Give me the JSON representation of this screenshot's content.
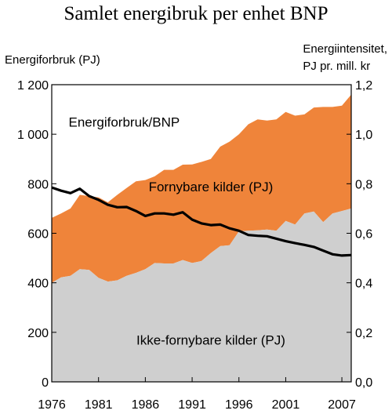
{
  "chart_data": {
    "type": "area",
    "title": "Samlet energibruk per enhet BNP",
    "ylabel_left": "Energiforbruk (PJ)",
    "ylabel_right": [
      "Energiintensitet,",
      "PJ pr. mill. kr"
    ],
    "x": [
      1976,
      1977,
      1978,
      1979,
      1980,
      1981,
      1982,
      1983,
      1984,
      1985,
      1986,
      1987,
      1988,
      1989,
      1990,
      1991,
      1992,
      1993,
      1994,
      1995,
      1996,
      1997,
      1998,
      1999,
      2000,
      2001,
      2002,
      2003,
      2004,
      2005,
      2006,
      2007,
      2008
    ],
    "xticks": [
      "1976",
      "1981",
      "1986",
      "1991",
      "1996",
      "2001",
      "2007"
    ],
    "xtick_values": [
      1976,
      1981,
      1986,
      1991,
      1996,
      2001,
      2007
    ],
    "xlim": [
      1976,
      2008
    ],
    "ylim_left": [
      0,
      1200
    ],
    "yticks_left": [
      "0",
      "200",
      "400",
      "600",
      "800",
      "1 000",
      "1 200"
    ],
    "ylim_right": [
      0,
      1.2
    ],
    "yticks_right": [
      "0,0",
      "0,2",
      "0,4",
      "0,6",
      "0,8",
      "1,0",
      "1,2"
    ],
    "grid": false,
    "series": [
      {
        "name": "Ikke-fornybare kilder (PJ)",
        "kind": "stacked-area",
        "axis": "left",
        "color": "#cfcfcf",
        "values": [
          400,
          422,
          428,
          455,
          452,
          420,
          405,
          410,
          428,
          440,
          455,
          480,
          478,
          478,
          492,
          480,
          488,
          520,
          548,
          552,
          608,
          610,
          612,
          615,
          610,
          650,
          635,
          680,
          688,
          645,
          680,
          690,
          700
        ]
      },
      {
        "name": "Fornybare kilder (PJ)",
        "kind": "stacked-area",
        "axis": "left",
        "color": "#ef843a",
        "values": [
          262,
          258,
          272,
          300,
          298,
          325,
          320,
          345,
          355,
          370,
          360,
          350,
          378,
          378,
          385,
          398,
          400,
          380,
          402,
          418,
          392,
          430,
          448,
          440,
          450,
          440,
          440,
          400,
          420,
          465,
          430,
          425,
          460
        ]
      },
      {
        "name": "Energiforbruk/BNP",
        "kind": "line",
        "axis": "right",
        "color": "#000000",
        "values": [
          0.785,
          0.772,
          0.762,
          0.78,
          0.75,
          0.735,
          0.715,
          0.705,
          0.706,
          0.69,
          0.67,
          0.68,
          0.68,
          0.675,
          0.685,
          0.655,
          0.64,
          0.633,
          0.635,
          0.62,
          0.61,
          0.593,
          0.59,
          0.588,
          0.578,
          0.568,
          0.56,
          0.553,
          0.545,
          0.53,
          0.515,
          0.51,
          0.512
        ]
      }
    ],
    "annotations": [
      {
        "text": "Energiforbruk/BNP",
        "x": 1982.5,
        "y": 1030
      },
      {
        "text": "Fornybare kilder (PJ)",
        "x": 1993,
        "y": 770
      },
      {
        "text": "Ikke-fornybare kilder (PJ)",
        "x": 1993,
        "y": 150
      }
    ]
  }
}
